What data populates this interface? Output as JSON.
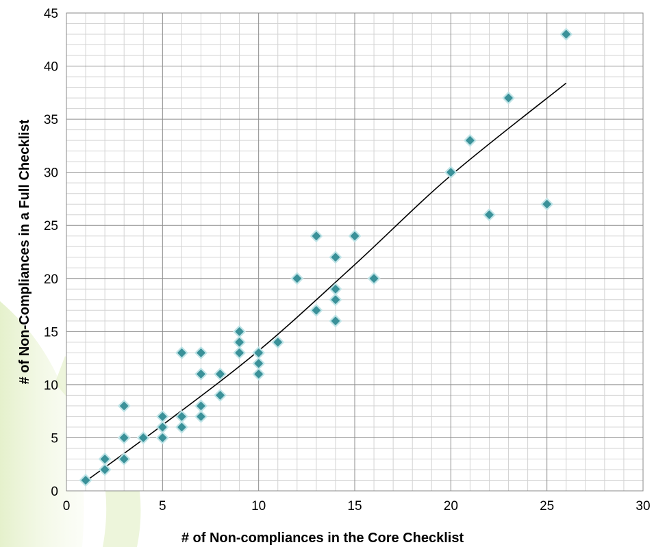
{
  "chart_data": {
    "type": "scatter",
    "title": "",
    "xlabel": "# of Non-compliances in the Core Checklist",
    "ylabel": "# of Non-Compliances in a Full Checklist",
    "xlim": [
      0,
      30
    ],
    "ylim": [
      0,
      45
    ],
    "x_ticks": [
      "0",
      "5",
      "10",
      "15",
      "20",
      "25",
      "30"
    ],
    "y_ticks": [
      "0",
      "5",
      "10",
      "15",
      "20",
      "25",
      "30",
      "35",
      "40",
      "45"
    ],
    "grid": true,
    "marker": "diamond",
    "marker_color": "#3a9199",
    "series": [
      {
        "points": [
          [
            1,
            1
          ],
          [
            2,
            2
          ],
          [
            2,
            3
          ],
          [
            3,
            3
          ],
          [
            3,
            5
          ],
          [
            3,
            8
          ],
          [
            4,
            5
          ],
          [
            5,
            5
          ],
          [
            5,
            6
          ],
          [
            5,
            7
          ],
          [
            6,
            6
          ],
          [
            6,
            7
          ],
          [
            6,
            13
          ],
          [
            7,
            7
          ],
          [
            7,
            8
          ],
          [
            7,
            11
          ],
          [
            7,
            13
          ],
          [
            8,
            9
          ],
          [
            8,
            11
          ],
          [
            9,
            13
          ],
          [
            9,
            14
          ],
          [
            9,
            15
          ],
          [
            10,
            11
          ],
          [
            10,
            12
          ],
          [
            10,
            13
          ],
          [
            11,
            14
          ],
          [
            12,
            20
          ],
          [
            13,
            17
          ],
          [
            13,
            24
          ],
          [
            14,
            16
          ],
          [
            14,
            18
          ],
          [
            14,
            19
          ],
          [
            14,
            22
          ],
          [
            15,
            24
          ],
          [
            16,
            20
          ],
          [
            20,
            30
          ],
          [
            21,
            33
          ],
          [
            22,
            26
          ],
          [
            23,
            37
          ],
          [
            25,
            27
          ],
          [
            26,
            43
          ]
        ]
      }
    ],
    "trendline": {
      "type": "curve",
      "points": [
        [
          1,
          0.9
        ],
        [
          5,
          6.2
        ],
        [
          10,
          13.2
        ],
        [
          15,
          21.3
        ],
        [
          20,
          29.7
        ],
        [
          26,
          38.4
        ]
      ]
    }
  }
}
